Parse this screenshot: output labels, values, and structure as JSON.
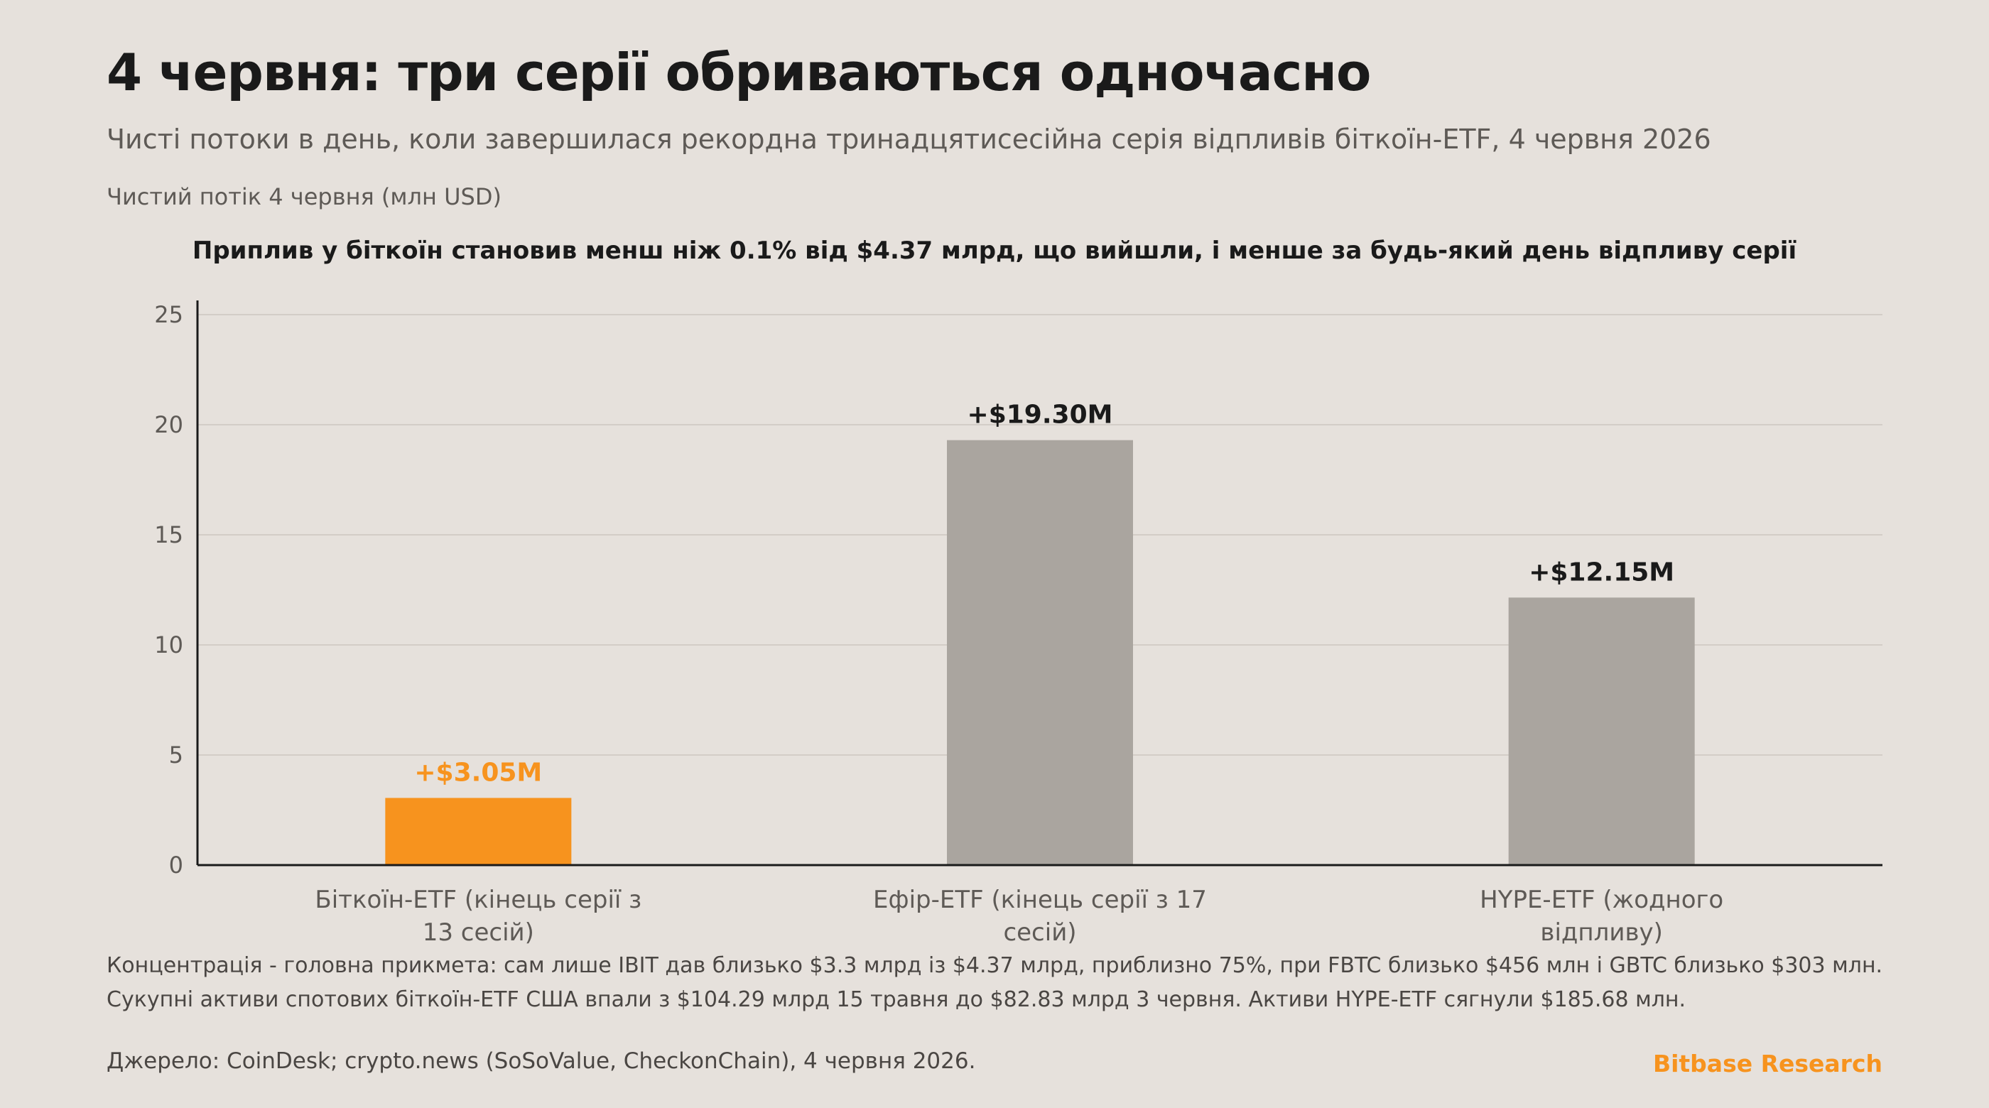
{
  "header": {
    "title": "4 червня: три серії обриваються одночасно",
    "subtitle": "Чисті потоки в день, коли завершилася рекордна тринадцятисесійна серія відпливів біткоїн-ETF, 4 червня 2026",
    "units_label": "Чистий потік 4 червня (млн USD)",
    "annotation": "Приплив у біткоїн становив менш ніж 0.1% від $4.37 млрд, що вийшли, і менше за будь-який день відпливу серії"
  },
  "chart_data": {
    "type": "bar",
    "categories": [
      "Біткоїн-ETF (кінець серії з 13 сесій)",
      "Ефір-ETF (кінець серії з 17 сесій)",
      "HYPE-ETF (жодного відпливу)"
    ],
    "category_lines": [
      [
        "Біткоїн-ETF (кінець серії з",
        "13 сесій)"
      ],
      [
        "Ефір-ETF (кінець серії з 17",
        "сесій)"
      ],
      [
        "HYPE-ETF (жодного",
        "відпливу)"
      ]
    ],
    "values": [
      3.05,
      19.3,
      12.15
    ],
    "value_labels": [
      "+$3.05M",
      "+$19.30M",
      "+$12.15M"
    ],
    "bar_colors": [
      "#f7931e",
      "#aaa59f",
      "#aaa59f"
    ],
    "label_colors": [
      "#f7931e",
      "#1a1a1a",
      "#1a1a1a"
    ],
    "ylim": [
      0,
      25
    ],
    "yticks": [
      0,
      5,
      10,
      15,
      20,
      25
    ],
    "grid": true,
    "xlabel": "",
    "ylabel": ""
  },
  "footer": {
    "note_line1": "Концентрація - головна прикмета: сам лише IBIT дав близько $3.3 млрд із $4.37 млрд, приблизно 75%, при FBTC близько $456 млн і GBTC близько $303 млн.",
    "note_line2": "Сукупні активи спотових біткоїн-ETF США впали з $104.29 млрд 15 травня до $82.83 млрд 3 червня. Активи HYPE-ETF сягнули $185.68 млн.",
    "source": "Джерело: CoinDesk; crypto.news (SoSoValue, CheckonChain), 4 червня 2026.",
    "brand": "Bitbase Research"
  },
  "colors": {
    "background": "#e6e1dc",
    "accent": "#f7931e",
    "muted_bar": "#aaa59f",
    "grid": "#d3cdc7",
    "axis": "#1a1a1a"
  }
}
